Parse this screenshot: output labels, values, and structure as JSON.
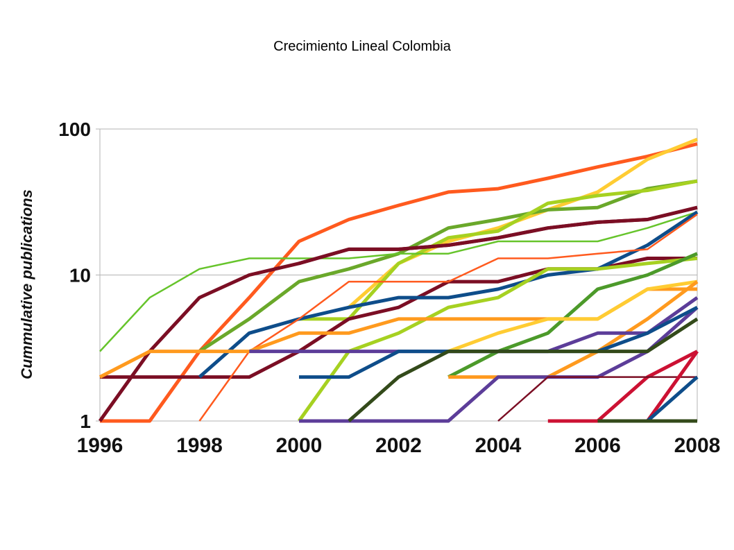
{
  "page_title": "Crecimiento Lineal Colombia",
  "chart_data": {
    "type": "line",
    "title": "Crecimiento Lineal Colombia",
    "ylabel": "Cummulative publications",
    "xlabel": "",
    "yscale": "log",
    "ylim": [
      1,
      100
    ],
    "xlim": [
      1996,
      2008
    ],
    "x_ticks": [
      "1996",
      "1998",
      "2000",
      "2002",
      "2004",
      "2006",
      "2008"
    ],
    "y_ticks": [
      "1",
      "10",
      "100"
    ],
    "grid": "horizontal major lines",
    "legend": "none",
    "x": [
      1996,
      1997,
      1998,
      1999,
      2000,
      2001,
      2002,
      2003,
      2004,
      2005,
      2006,
      2007,
      2008
    ],
    "series": [
      {
        "color": "#ff5a1e",
        "values": [
          1,
          1,
          3,
          7,
          17,
          24,
          30,
          37,
          39,
          46,
          55,
          65,
          79
        ]
      },
      {
        "color": "#ffcc33",
        "values": [
          null,
          null,
          null,
          null,
          null,
          6,
          12,
          17,
          21,
          28,
          37,
          62,
          85
        ]
      },
      {
        "color": "#6aa82a",
        "values": [
          null,
          null,
          3,
          5,
          9,
          11,
          14,
          21,
          24,
          28,
          29,
          39,
          44
        ]
      },
      {
        "color": "#a6d121",
        "values": [
          null,
          null,
          null,
          null,
          5,
          5,
          12,
          18,
          20,
          31,
          35,
          38,
          44
        ]
      },
      {
        "color": "#66c42b",
        "values": [
          3,
          7,
          11,
          13,
          13,
          13,
          14,
          14,
          17,
          17,
          17,
          21,
          27
        ]
      },
      {
        "color": "#7b0e24",
        "values": [
          null,
          null,
          null,
          null,
          12,
          15,
          15,
          16,
          18,
          21,
          23,
          24,
          29
        ]
      },
      {
        "color": "#7b0e24",
        "values": [
          1,
          3,
          7,
          10,
          12,
          15,
          15,
          16,
          18,
          21,
          23,
          24,
          29
        ]
      },
      {
        "color": "#7b0e24",
        "values": [
          2,
          2,
          2,
          2,
          3,
          5,
          6,
          9,
          9,
          11,
          11,
          13,
          13
        ]
      },
      {
        "color": "#0e4d8a",
        "values": [
          null,
          null,
          2,
          4,
          5,
          6,
          7,
          7,
          8,
          10,
          11,
          16,
          27
        ]
      },
      {
        "color": "#ff5a1e",
        "values": [
          null,
          null,
          1,
          3,
          5,
          9,
          9,
          9,
          13,
          13,
          14,
          15,
          26
        ]
      },
      {
        "color": "#a6d121",
        "values": [
          null,
          null,
          null,
          null,
          1,
          3,
          4,
          6,
          7,
          11,
          11,
          12,
          13
        ]
      },
      {
        "color": "#4c9a2a",
        "values": [
          null,
          null,
          null,
          null,
          null,
          null,
          null,
          2,
          3,
          4,
          8,
          10,
          14
        ]
      },
      {
        "color": "#ff9a1e",
        "values": [
          2,
          3,
          3,
          3,
          4,
          4,
          5,
          5,
          5,
          5,
          5,
          8,
          8
        ]
      },
      {
        "color": "#ffcc33",
        "values": [
          null,
          null,
          null,
          null,
          null,
          null,
          null,
          3,
          4,
          5,
          5,
          8,
          9
        ]
      },
      {
        "color": "#ff9a1e",
        "values": [
          null,
          null,
          null,
          null,
          null,
          null,
          null,
          2,
          2,
          2,
          3,
          5,
          9
        ]
      },
      {
        "color": "#5c3d99",
        "values": [
          null,
          null,
          null,
          3,
          3,
          3,
          3,
          3,
          3,
          3,
          4,
          4,
          7
        ]
      },
      {
        "color": "#5c3d99",
        "values": [
          null,
          null,
          null,
          null,
          1,
          1,
          1,
          1,
          2,
          2,
          2,
          3,
          6
        ]
      },
      {
        "color": "#0e4d8a",
        "values": [
          null,
          null,
          null,
          null,
          2,
          2,
          3,
          3,
          3,
          3,
          3,
          4,
          6
        ]
      },
      {
        "color": "#334a1a",
        "values": [
          null,
          null,
          null,
          null,
          null,
          1,
          2,
          3,
          3,
          3,
          3,
          3,
          5
        ]
      },
      {
        "color": "#cc1133",
        "values": [
          null,
          null,
          null,
          null,
          null,
          null,
          null,
          null,
          null,
          1,
          1,
          2,
          3
        ]
      },
      {
        "color": "#7b0e24",
        "values": [
          null,
          null,
          null,
          null,
          null,
          null,
          null,
          null,
          1,
          2,
          2,
          2,
          2
        ]
      },
      {
        "color": "#cc1133",
        "values": [
          null,
          null,
          null,
          null,
          null,
          null,
          null,
          null,
          null,
          null,
          null,
          1,
          3
        ]
      },
      {
        "color": "#0e4d8a",
        "values": [
          null,
          null,
          null,
          null,
          null,
          null,
          null,
          null,
          null,
          null,
          null,
          1,
          2
        ]
      },
      {
        "color": "#334a1a",
        "values": [
          null,
          null,
          null,
          null,
          null,
          null,
          null,
          null,
          null,
          null,
          1,
          1,
          1
        ]
      }
    ]
  }
}
